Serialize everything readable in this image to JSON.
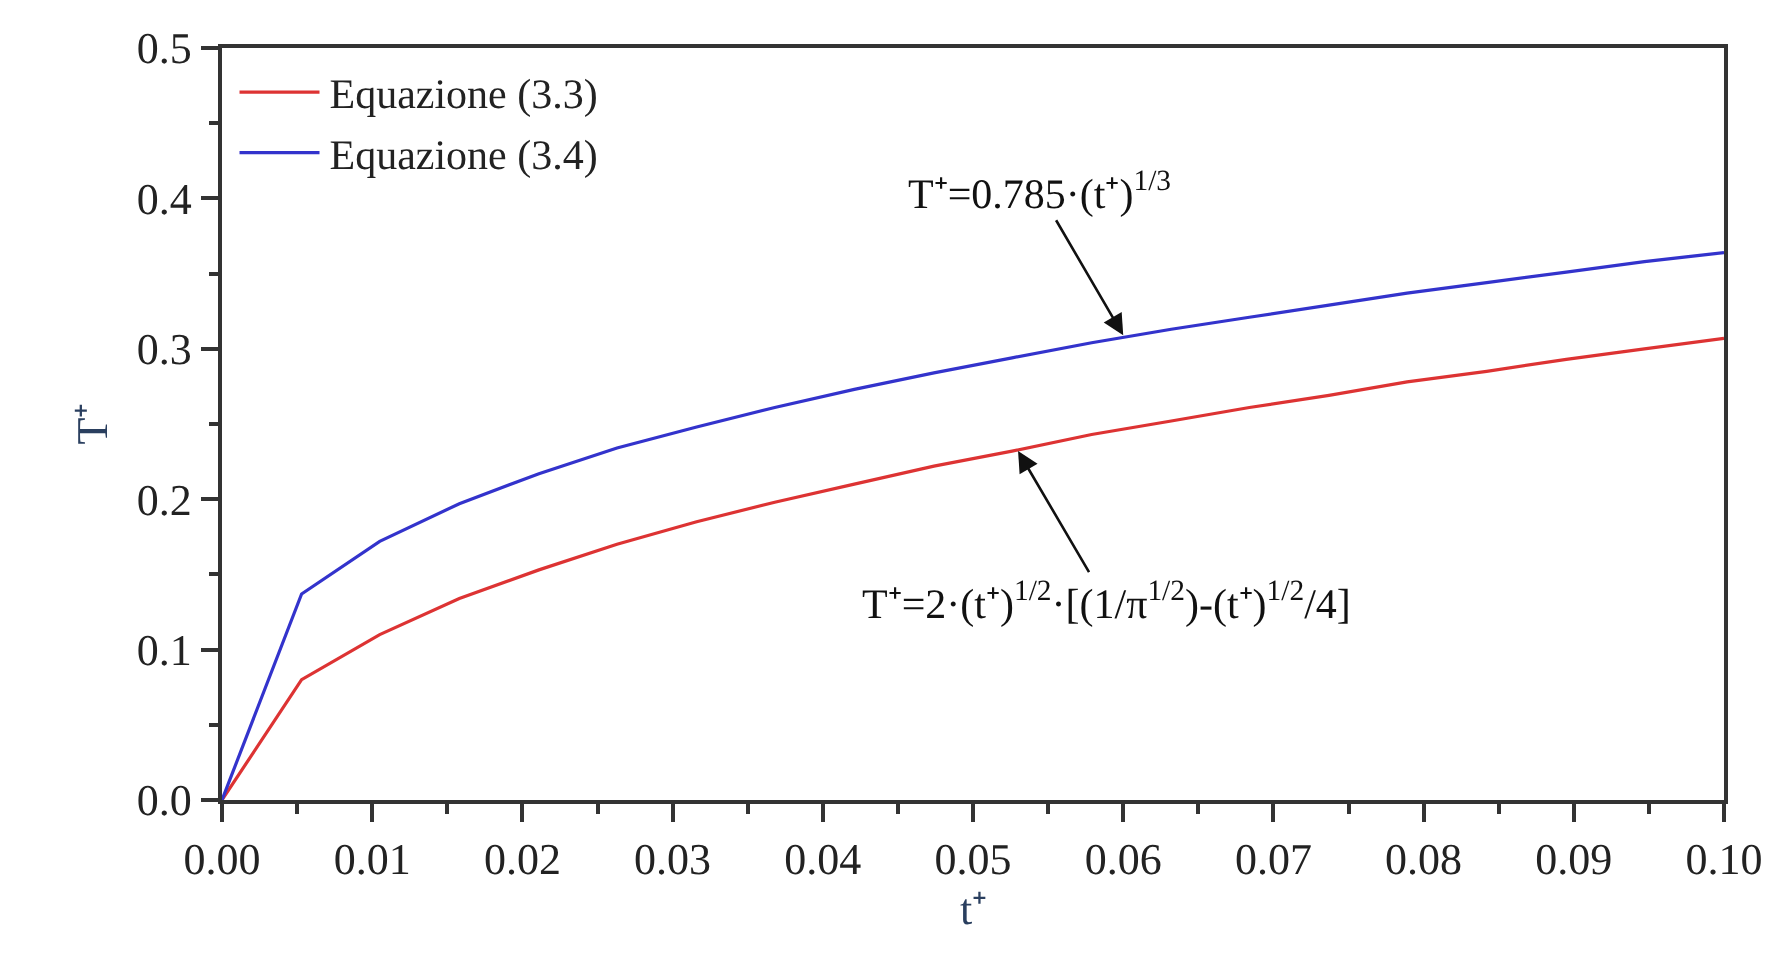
{
  "chart_data": {
    "type": "line",
    "xlabel": "t⁺",
    "ylabel": "T⁺",
    "x": [
      0,
      0.0053,
      0.0105,
      0.0158,
      0.0211,
      0.0263,
      0.0316,
      0.0368,
      0.0421,
      0.0474,
      0.0526,
      0.0579,
      0.0632,
      0.0684,
      0.0737,
      0.0789,
      0.0842,
      0.0895,
      0.0947,
      0.1
    ],
    "series": [
      {
        "name": "Equazione (3.3)",
        "color": "#dd3333",
        "values": [
          0,
          0.08,
          0.11,
          0.134,
          0.153,
          0.17,
          0.185,
          0.198,
          0.21,
          0.222,
          0.232,
          0.243,
          0.252,
          0.261,
          0.269,
          0.278,
          0.285,
          0.293,
          0.3,
          0.307
        ]
      },
      {
        "name": "Equazione (3.4)",
        "color": "#3333cc",
        "values": [
          0,
          0.137,
          0.172,
          0.197,
          0.217,
          0.234,
          0.248,
          0.261,
          0.273,
          0.284,
          0.294,
          0.304,
          0.313,
          0.321,
          0.329,
          0.337,
          0.344,
          0.351,
          0.358,
          0.364
        ]
      }
    ],
    "annotations": [
      {
        "text": "T⁺=0.785·(t⁺)$^{1/3}$",
        "x": 0.06,
        "y": 0.309
      },
      {
        "text": "T⁺=2·(t⁺)$^{1/2}$·[(1/π$^{1/2}$)-(t⁺)$^{1/2}$/4]",
        "x": 0.053,
        "y": 0.232
      }
    ],
    "xlim": [
      0,
      0.1
    ],
    "xticks": [
      {
        "value": 0,
        "label": "0.00"
      },
      {
        "value": 0.005,
        "label": null
      },
      {
        "value": 0.01,
        "label": "0.01"
      },
      {
        "value": 0.015,
        "label": null
      },
      {
        "value": 0.02,
        "label": "0.02"
      },
      {
        "value": 0.025,
        "label": null
      },
      {
        "value": 0.03,
        "label": "0.03"
      },
      {
        "value": 0.035,
        "label": null
      },
      {
        "value": 0.04,
        "label": "0.04"
      },
      {
        "value": 0.045,
        "label": null
      },
      {
        "value": 0.05,
        "label": "0.05"
      },
      {
        "value": 0.055,
        "label": null
      },
      {
        "value": 0.06,
        "label": "0.06"
      },
      {
        "value": 0.065,
        "label": null
      },
      {
        "value": 0.07,
        "label": "0.07"
      },
      {
        "value": 0.075,
        "label": null
      },
      {
        "value": 0.08,
        "label": "0.08"
      },
      {
        "value": 0.085,
        "label": null
      },
      {
        "value": 0.09,
        "label": "0.09"
      },
      {
        "value": 0.095,
        "label": null
      },
      {
        "value": 0.1,
        "label": "0.10"
      }
    ],
    "ylim": [
      0,
      0.5
    ],
    "yticks": [
      {
        "value": 0,
        "label": "0.0"
      },
      {
        "value": 0.05,
        "label": null
      },
      {
        "value": 0.1,
        "label": "0.1"
      },
      {
        "value": 0.15,
        "label": null
      },
      {
        "value": 0.2,
        "label": "0.2"
      },
      {
        "value": 0.25,
        "label": null
      },
      {
        "value": 0.3,
        "label": "0.3"
      },
      {
        "value": 0.35,
        "label": null
      },
      {
        "value": 0.4,
        "label": "0.4"
      },
      {
        "value": 0.45,
        "label": null
      },
      {
        "value": 0.5,
        "label": "0.5"
      }
    ],
    "legend": "top left"
  }
}
